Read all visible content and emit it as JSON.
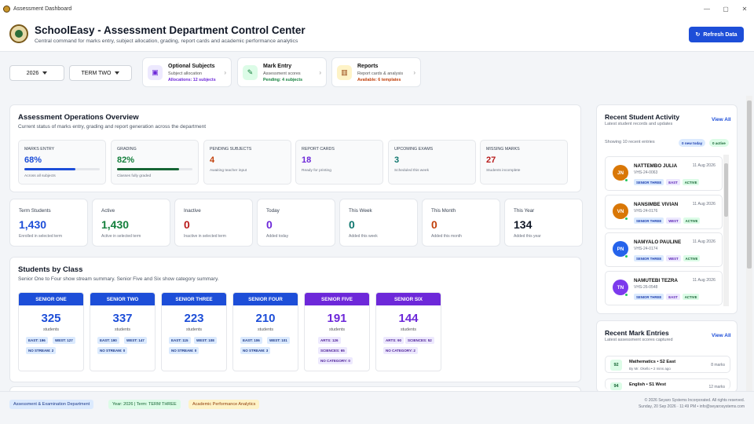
{
  "window": {
    "title": "Assessment Dashboard",
    "controls": [
      "—",
      "▢",
      "✕"
    ]
  },
  "header": {
    "title": "SchoolEasy - Assessment Department Control Center",
    "subtitle": "Central command for marks entry, subject allocation, grading, report cards and academic performance analytics",
    "refresh_icon": "↻",
    "refresh_label": "Refresh Data"
  },
  "filters": {
    "year": "2026",
    "term": "TERM TWO"
  },
  "quick_cards": [
    {
      "title": "Optional Subjects",
      "subtitle": "Subject allocation",
      "footer": "Allocations: 12 subjects",
      "icon": "allocation-icon",
      "color": "#6d28d9"
    },
    {
      "title": "Mark Entry",
      "subtitle": "Assessment scores",
      "footer": "Pending: 4 subjects",
      "icon": "pen-icon",
      "color": "#15803d"
    },
    {
      "title": "Reports",
      "subtitle": "Report cards & analysis",
      "footer": "Available: 6 templates",
      "icon": "chart-icon",
      "color": "#c2410c"
    }
  ],
  "overview": {
    "title": "Assessment Operations Overview",
    "subtitle": "Current status of marks entry, grading and report generation across the department",
    "cards": [
      {
        "label": "MARKS ENTRY",
        "value": "68%",
        "note": "Across all subjects",
        "color": "#1d4ed8",
        "progress": 0.68
      },
      {
        "label": "GRADING",
        "value": "82%",
        "note": "Classes fully graded",
        "color": "#15803d",
        "progress": 0.82
      },
      {
        "label": "PENDING SUBJECTS",
        "value": "4",
        "note": "Awaiting teacher input",
        "color": "#c2410c"
      },
      {
        "label": "REPORT CARDS",
        "value": "18",
        "note": "Ready for printing",
        "color": "#6d28d9"
      },
      {
        "label": "UPCOMING EXAMS",
        "value": "3",
        "note": "Scheduled this week",
        "color": "#0f766e"
      },
      {
        "label": "MISSING MARKS",
        "value": "27",
        "note": "Students incomplete",
        "color": "#b91c1c"
      }
    ]
  },
  "stats": [
    {
      "label": "Term Students",
      "value": "1,430",
      "note": "Enrolled in selected term",
      "color": "#1d4ed8"
    },
    {
      "label": "Active",
      "value": "1,430",
      "note": "Active in selected term",
      "color": "#15803d"
    },
    {
      "label": "Inactive",
      "value": "0",
      "note": "Inactive in selected term",
      "color": "#b91c1c"
    },
    {
      "label": "Today",
      "value": "0",
      "note": "Added today",
      "color": "#6d28d9"
    },
    {
      "label": "This Week",
      "value": "0",
      "note": "Added this week",
      "color": "#0f766e"
    },
    {
      "label": "This Month",
      "value": "0",
      "note": "Added this month",
      "color": "#c2410c"
    },
    {
      "label": "This Year",
      "value": "134",
      "note": "Added this year",
      "color": "#111827"
    }
  ],
  "classes": {
    "title": "Students by Class",
    "subtitle": "Senior One to Four show stream summary. Senior Five and Six show category summary.",
    "students_label": "students",
    "items": [
      {
        "name": "SENIOR ONE",
        "count": "325",
        "color": "#1d4ed8",
        "tags": [
          "EAST: 196",
          "WEST: 127",
          "NO STREAM: 2"
        ]
      },
      {
        "name": "SENIOR TWO",
        "count": "337",
        "color": "#1d4ed8",
        "tags": [
          "EAST: 190",
          "WEST: 147",
          "NO STREAM: 0"
        ]
      },
      {
        "name": "SENIOR THREE",
        "count": "223",
        "color": "#1d4ed8",
        "tags": [
          "EAST: 115",
          "WEST: 108",
          "NO STREAM: 0"
        ]
      },
      {
        "name": "SENIOR FOUR",
        "count": "210",
        "color": "#1d4ed8",
        "tags": [
          "EAST: 106",
          "WEST: 101",
          "NO STREAM: 3"
        ]
      },
      {
        "name": "SENIOR FIVE",
        "count": "191",
        "color": "#6d28d9",
        "tags": [
          "ARTS: 126",
          "SCIENCES: 65",
          "NO CATEGORY: 0"
        ]
      },
      {
        "name": "SENIOR SIX",
        "count": "144",
        "color": "#6d28d9",
        "tags": [
          "ARTS: 90",
          "SCIENCES: 52",
          "NO CATEGORY: 2"
        ]
      }
    ]
  },
  "activity": {
    "title": "Recent Student Activity",
    "subtitle": "Latest student records and updates",
    "view_all": "View All",
    "showing": "Showing 10 recent entries",
    "new_today": "0 new today",
    "active": "0 active",
    "students": [
      {
        "initials": "JN",
        "name": "NATTEMBO JULIA",
        "id": "VHS-24-0063",
        "date": "11 Aug 2026",
        "class": "SENIOR THREE",
        "stream": "EAST",
        "status": "ACTIVE",
        "color": "#d97706"
      },
      {
        "initials": "VN",
        "name": "NANSIMBE VIVIAN",
        "id": "VHS-24-0176",
        "date": "11 Aug 2026",
        "class": "SENIOR THREE",
        "stream": "WEST",
        "status": "ACTIVE",
        "color": "#d97706"
      },
      {
        "initials": "PN",
        "name": "NAMYALO PAULINE",
        "id": "VHS-24-0174",
        "date": "11 Aug 2026",
        "class": "SENIOR THREE",
        "stream": "WEST",
        "status": "ACTIVE",
        "color": "#2563eb"
      },
      {
        "initials": "TN",
        "name": "NAMUTEBI TEZRA",
        "id": "VHS-26-0548",
        "date": "11 Aug 2026",
        "class": "SENIOR THREE",
        "stream": "EAST",
        "status": "ACTIVE",
        "color": "#7c3aed"
      }
    ]
  },
  "marks": {
    "title": "Recent Mark Entries",
    "subtitle": "Latest assessment scores captured",
    "view_all": "View All",
    "entries": [
      {
        "score": "92",
        "title": "Mathematics • S2 East",
        "by": "By Mr. Okello • 2 mins ago",
        "count": "8 marks"
      },
      {
        "score": "94",
        "title": "English • S1 West",
        "by": "",
        "count": "12 marks"
      }
    ]
  },
  "footer": {
    "department": "Assessment & Examination Department",
    "year_term": "Year: 2026 | Term: TERM THREE",
    "analytics": "Academic Performance Analytics",
    "copyright": "© 2026 Seyaro Systems Incorporated. All rights reserved.",
    "datetime": "Sunday, 20 Sep 2026 · 11:49 PM  •  info@seyarosystems.com"
  }
}
